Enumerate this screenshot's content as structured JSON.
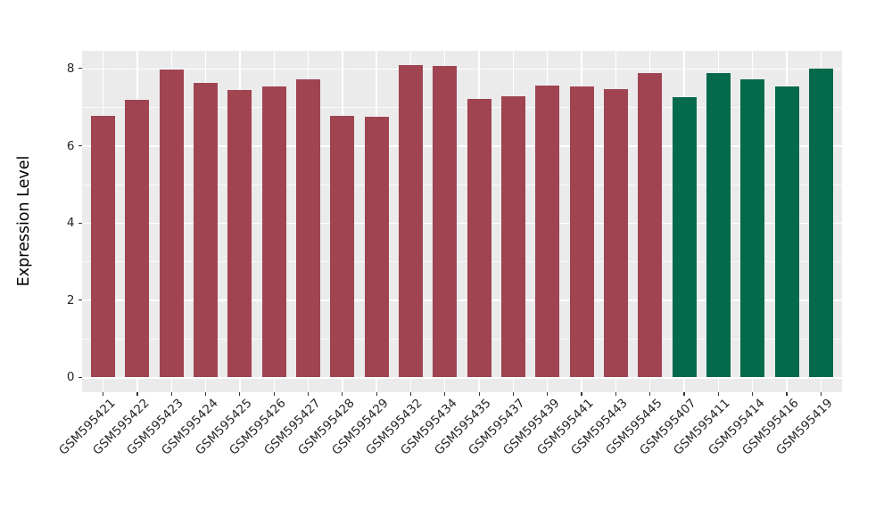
{
  "chart_data": {
    "type": "bar",
    "title": "",
    "xlabel": "",
    "ylabel": "Expression Level",
    "ylim": [
      -0.4,
      8.47
    ],
    "yticks_major": [
      0,
      2,
      4,
      6,
      8
    ],
    "yticks_minor": [
      1,
      3,
      5,
      7
    ],
    "grid": "on",
    "legend_position": "none",
    "panel_background": "#EBEBEB",
    "gridline_color": "#FFFFFF",
    "tick_color": "#333333",
    "tick_label_color": "#262626",
    "categories": [
      "GSM595421",
      "GSM595422",
      "GSM595423",
      "GSM595424",
      "GSM595425",
      "GSM595426",
      "GSM595427",
      "GSM595428",
      "GSM595429",
      "GSM595432",
      "GSM595434",
      "GSM595435",
      "GSM595437",
      "GSM595439",
      "GSM595441",
      "GSM595443",
      "GSM595445",
      "GSM595407",
      "GSM595411",
      "GSM595414",
      "GSM595416",
      "GSM595419"
    ],
    "values": [
      6.78,
      7.18,
      7.98,
      7.62,
      7.45,
      7.54,
      7.71,
      6.78,
      6.74,
      8.08,
      8.06,
      7.22,
      7.28,
      7.57,
      7.53,
      7.47,
      7.89,
      7.26,
      7.89,
      7.71,
      7.53,
      7.99
    ],
    "bar_groups": [
      "red",
      "red",
      "red",
      "red",
      "red",
      "red",
      "red",
      "red",
      "red",
      "red",
      "red",
      "red",
      "red",
      "red",
      "red",
      "red",
      "red",
      "green",
      "green",
      "green",
      "green",
      "green"
    ],
    "group_colors": {
      "red": "#A04452",
      "green": "#046A4B"
    }
  }
}
